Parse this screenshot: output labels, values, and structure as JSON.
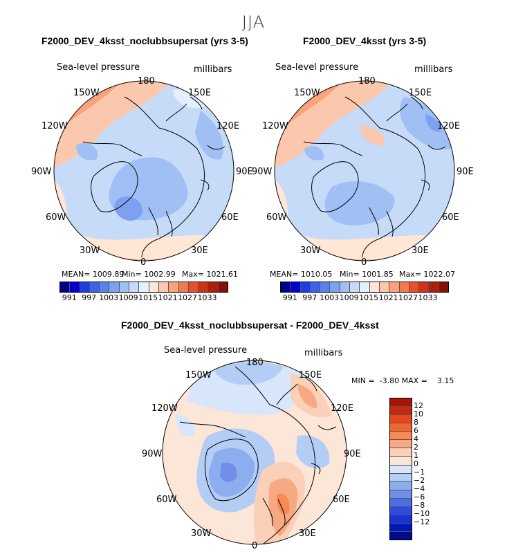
{
  "figure": {
    "season": "JJA",
    "diff_title": "F2000_DEV_4ksst_noclubbsupersat - F2000_DEV_4ksst"
  },
  "panels": [
    {
      "title": "F2000_DEV_4ksst_noclubbsupersat (yrs 3-5)",
      "variable": "Sea-level pressure",
      "units": "millibars",
      "lon_labels": {
        "p180": "180",
        "p150e": "150E",
        "p120e": "120E",
        "p90e": "90E",
        "p60e": "60E",
        "p30e": "30E",
        "p0": "0",
        "p30w": "30W",
        "p60w": "60W",
        "p90w": "90W",
        "p120w": "120W",
        "p150w": "150W"
      },
      "mean": "MEAN= 1009.89",
      "min": "Min= 1002.99",
      "max": "Max= 1021.61"
    },
    {
      "title": "F2000_DEV_4ksst (yrs 3-5)",
      "variable": "Sea-level pressure",
      "units": "millibars",
      "lon_labels": {
        "p180": "180",
        "p150e": "150E",
        "p120e": "120E",
        "p90e": "90E",
        "p60e": "60E",
        "p30e": "30E",
        "p0": "0",
        "p30w": "30W",
        "p60w": "60W",
        "p90w": "90W",
        "p120w": "120W",
        "p150w": "150W"
      },
      "mean": "MEAN= 1010.05",
      "min": "Min= 1001.85",
      "max": "Max= 1022.07"
    },
    {
      "title": "F2000_DEV_4ksst_noclubbsupersat - F2000_DEV_4ksst",
      "variable": "Sea-level pressure",
      "units": "millibars",
      "lon_labels": {
        "p180": "180",
        "p150e": "150E",
        "p120e": "120E",
        "p90e": "90E",
        "p60e": "60E",
        "p30e": "30E",
        "p0": "0",
        "p30w": "30W",
        "p60w": "60W",
        "p90w": "90W",
        "p120w": "120W",
        "p150w": "150W"
      },
      "minmax": "MIN =  -3.80 MAX =    3.15"
    }
  ],
  "colorbar_main": {
    "colors": [
      "#00008b",
      "#0000cd",
      "#1e3ce6",
      "#3c64eb",
      "#5a82ee",
      "#7da0f0",
      "#a0bff5",
      "#c6dbf8",
      "#e4efff",
      "#ffe6d5",
      "#fcc8ad",
      "#f9a27b",
      "#f27a4f",
      "#e8502a",
      "#cf3214",
      "#ad1e0e",
      "#851008"
    ],
    "tick_labels": [
      "991",
      "997",
      "1003",
      "1009",
      "1015",
      "1021",
      "1027",
      "1033"
    ]
  },
  "colorbar_diff": {
    "colors": [
      "#a51405",
      "#c8280d",
      "#e6461e",
      "#f5642d",
      "#f78a55",
      "#f7a983",
      "#fad1b8",
      "#fbe6d7",
      "#d7e6fa",
      "#b4cdf5",
      "#8caeef",
      "#6e8ee9",
      "#4b6ee6",
      "#2d4be1",
      "#1932d2",
      "#0019be",
      "#000a8c"
    ],
    "tick_labels": [
      "12",
      "10",
      "8",
      "6",
      "4",
      "2",
      "1",
      "0",
      "−1",
      "−2",
      "−4",
      "−6",
      "−8",
      "−10",
      "−12"
    ]
  }
}
